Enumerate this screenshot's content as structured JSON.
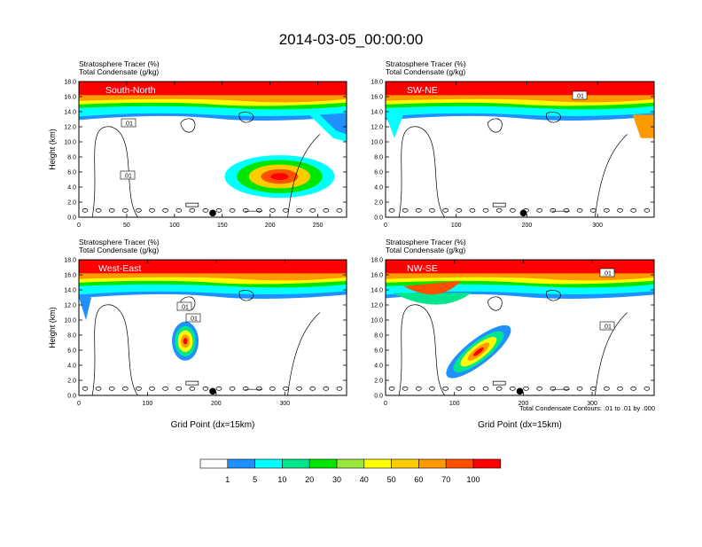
{
  "title": "2014-03-05_00:00:00",
  "panel_header": {
    "line1_label": "Stratosphere Tracer",
    "line1_unit": "(%)",
    "line2_label": "Total Condensate",
    "line2_unit": "(g/kg)"
  },
  "contour_note": "Total Condensate Contours: .01 to .01 by .000",
  "colorbar": {
    "levels": [
      "1",
      "5",
      "10",
      "20",
      "30",
      "40",
      "50",
      "60",
      "70",
      "100"
    ],
    "colors": [
      "#ffffff",
      "#1e90ff",
      "#00ffff",
      "#00e68c",
      "#00e600",
      "#9ae63c",
      "#ffff00",
      "#ffcc00",
      "#ff9900",
      "#ff5000",
      "#ff0000"
    ]
  },
  "chart_data": [
    {
      "type": "heatmap",
      "title": "South-North",
      "ylabel": "Height (km)",
      "xlabel": "",
      "xlim": [
        0,
        280
      ],
      "xticks": [
        "0",
        "50",
        "100",
        "150",
        "200",
        "250"
      ],
      "ylim": [
        0,
        18
      ],
      "yticks": [
        "0.0",
        "2.0",
        "4.0",
        "6.0",
        "8.0",
        "10.0",
        "12.0",
        "14.0",
        "16.0",
        "18.0"
      ],
      "contour_labels": [
        ".01",
        ".01"
      ],
      "marker_x": 140
    },
    {
      "type": "heatmap",
      "title": "SW-NE",
      "ylabel": "",
      "xlabel": "",
      "xlim": [
        0,
        380
      ],
      "xticks": [
        "0",
        "100",
        "200",
        "300"
      ],
      "ylim": [
        0,
        18
      ],
      "yticks": [
        "0.0",
        "2.0",
        "4.0",
        "6.0",
        "8.0",
        "10.0",
        "12.0",
        "14.0",
        "16.0",
        "18.0"
      ],
      "contour_labels": [
        ".01"
      ],
      "marker_x": 195
    },
    {
      "type": "heatmap",
      "title": "West-East",
      "ylabel": "Height (km)",
      "xlabel": "Grid Point (dx=15km)",
      "xlim": [
        0,
        390
      ],
      "xticks": [
        "0",
        "100",
        "200",
        "300"
      ],
      "ylim": [
        0,
        18
      ],
      "yticks": [
        "0.0",
        "2.0",
        "4.0",
        "6.0",
        "8.0",
        "10.0",
        "12.0",
        "14.0",
        "16.0",
        "18.0"
      ],
      "contour_labels": [
        ".01",
        ".01"
      ],
      "marker_x": 195
    },
    {
      "type": "heatmap",
      "title": "NW-SE",
      "ylabel": "",
      "xlabel": "Grid Point (dx=15km)",
      "xlim": [
        0,
        390
      ],
      "xticks": [
        "0",
        "100",
        "200",
        "300"
      ],
      "ylim": [
        0,
        18
      ],
      "yticks": [
        "0.0",
        "2.0",
        "4.0",
        "6.0",
        "8.0",
        "10.0",
        "12.0",
        "14.0",
        "16.0",
        "18.0"
      ],
      "contour_labels": [
        ".01",
        ".01"
      ],
      "marker_x": 195
    }
  ]
}
